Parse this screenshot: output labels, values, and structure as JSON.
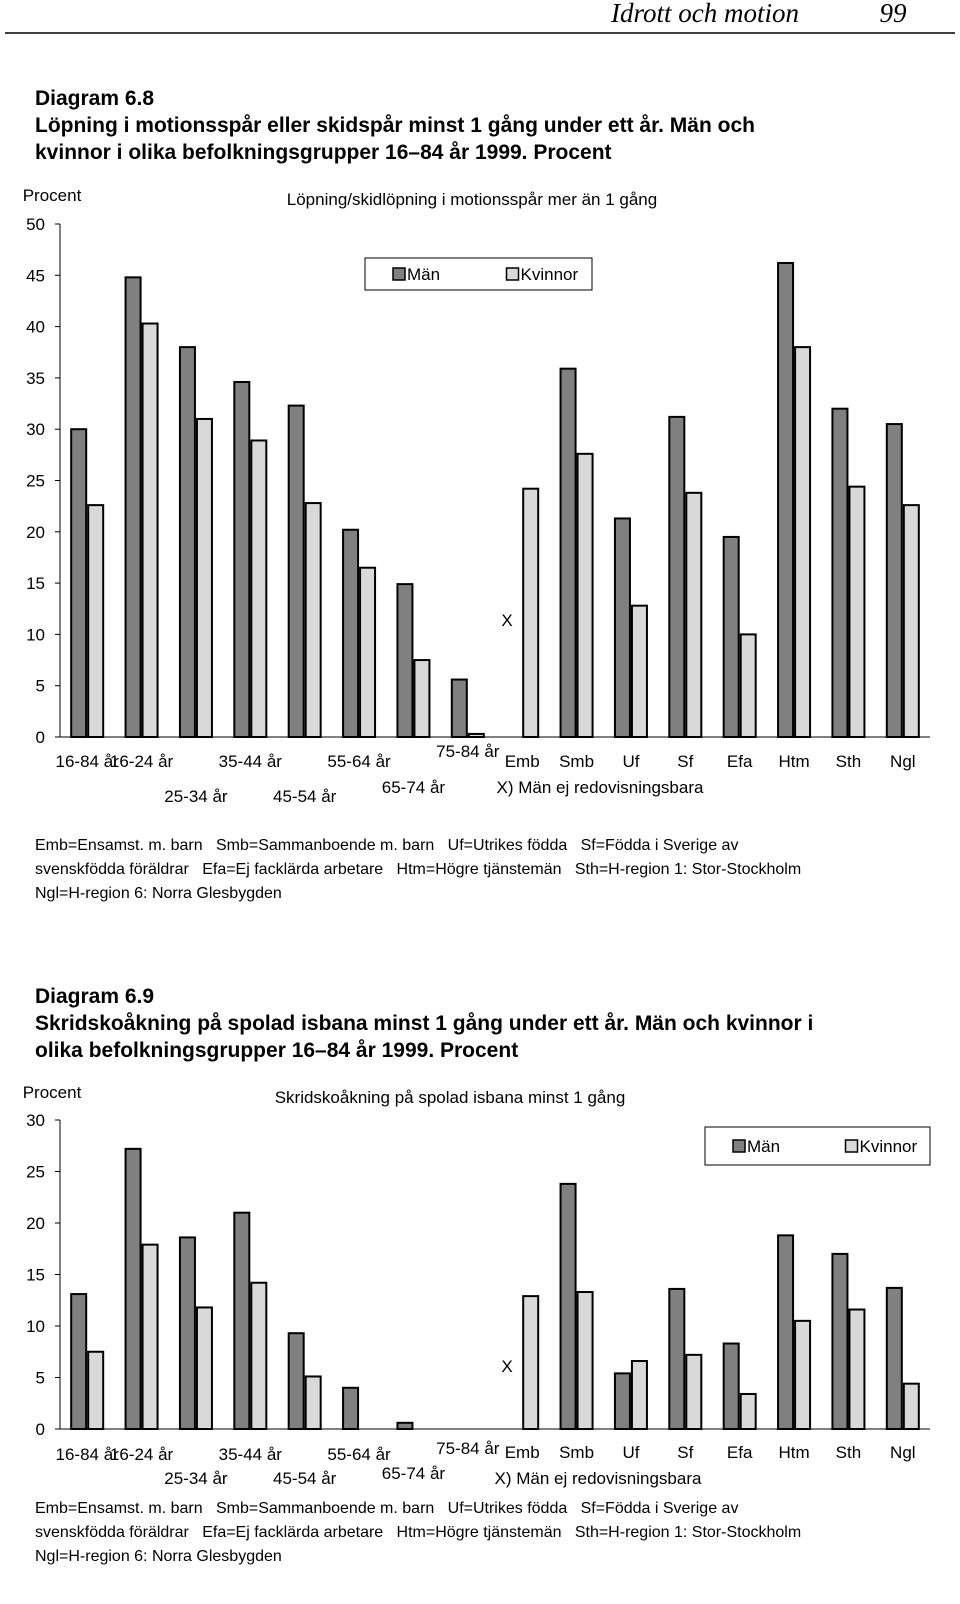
{
  "header": {
    "section": "Idrott och motion",
    "page": "99"
  },
  "diagrams": [
    {
      "number": "Diagram 6.8",
      "title_lines": [
        "Löpning i motionsspår eller skidspår minst 1 gång under ett år. Män och",
        "kvinnor i olika befolkningsgrupper 16–84 år 1999. Procent"
      ],
      "footnote_lines": [
        "Emb=Ensamst. m. barn   Smb=Sammanboende m. barn   Uf=Utrikes födda   Sf=Födda i Sverige av",
        "svenskfödda föräldrar   Efa=Ej facklärda arbetare   Htm=Högre tjänstemän   Sth=H-region 1: Stor-Stockholm",
        "Ngl=H-region 6: Norra Glesbygden"
      ]
    },
    {
      "number": "Diagram 6.9",
      "title_lines": [
        "Skridskoåkning på spolad isbana minst 1 gång under ett år. Män och kvinnor i",
        "olika befolkningsgrupper 16–84 år 1999. Procent"
      ],
      "footnote_lines": [
        "Emb=Ensamst. m. barn   Smb=Sammanboende m. barn   Uf=Utrikes födda   Sf=Födda i Sverige av",
        "svenskfödda föräldrar   Efa=Ej facklärda arbetare   Htm=Högre tjänstemän   Sth=H-region 1: Stor-Stockholm",
        "Ngl=H-region 6: Norra Glesbygden"
      ]
    }
  ],
  "chart_data": [
    {
      "type": "bar",
      "title": "Löpning/skidlöpning i motionsspår mer än 1 gång",
      "y_label": "Procent",
      "categories": [
        "16-84 år",
        "16-24 år",
        "25-34 år",
        "35-44 år",
        "45-54 år",
        "55-64 år",
        "65-74 år",
        "75-84 år",
        "Emb",
        "Smb",
        "Uf",
        "Sf",
        "Efa",
        "Htm",
        "Sth",
        "Ngl"
      ],
      "series": [
        {
          "name": "Män",
          "color": "#808080",
          "values": [
            30,
            44.8,
            38,
            34.6,
            32.3,
            20.2,
            14.9,
            5.6,
            null,
            35.9,
            21.3,
            31.2,
            19.5,
            46.2,
            32,
            30.5
          ]
        },
        {
          "name": "Kvinnor",
          "color": "#d9d9d9",
          "values": [
            22.6,
            40.3,
            31,
            28.9,
            22.8,
            16.5,
            7.5,
            0.3,
            24.2,
            27.6,
            12.8,
            23.8,
            10,
            38,
            24.4,
            22.6
          ]
        }
      ],
      "ylim": [
        0,
        50
      ],
      "yticks": [
        0,
        5,
        10,
        15,
        20,
        25,
        30,
        35,
        40,
        45,
        50
      ],
      "legend": "top",
      "annotations": [
        "X",
        "X) Män ej redovisningsbara"
      ]
    },
    {
      "type": "bar",
      "title": "Skridskoåkning på spolad isbana minst 1 gång",
      "y_label": "Procent",
      "categories": [
        "16-84 år",
        "16-24 år",
        "25-34 år",
        "35-44 år",
        "45-54 år",
        "55-64 år",
        "65-74 år",
        "75-84 år",
        "Emb",
        "Smb",
        "Uf",
        "Sf",
        "Efa",
        "Htm",
        "Sth",
        "Ngl"
      ],
      "series": [
        {
          "name": "Män",
          "color": "#808080",
          "values": [
            13.1,
            27.2,
            18.6,
            21,
            9.3,
            4,
            0.6,
            null,
            null,
            23.8,
            5.4,
            13.6,
            8.3,
            18.8,
            17,
            13.7
          ]
        },
        {
          "name": "Kvinnor",
          "color": "#d9d9d9",
          "values": [
            7.5,
            17.9,
            11.8,
            14.2,
            5.1,
            null,
            null,
            null,
            12.9,
            13.3,
            6.6,
            7.2,
            3.4,
            10.5,
            11.6,
            4.4
          ]
        }
      ],
      "ylim": [
        0,
        30
      ],
      "yticks": [
        0,
        5,
        10,
        15,
        20,
        25,
        30
      ],
      "legend": "top-right",
      "annotations": [
        "X",
        "X) Män ej redovisningsbara"
      ]
    }
  ]
}
